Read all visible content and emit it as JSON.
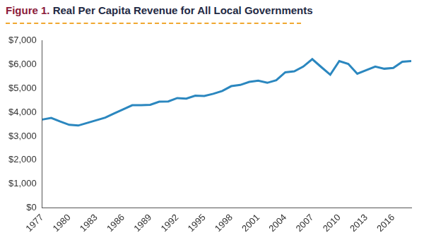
{
  "chart_data": {
    "type": "line",
    "title": "Figure 1. Real Per Capita Revenue for All Local Governments",
    "x": [
      1977,
      1978,
      1979,
      1980,
      1981,
      1982,
      1983,
      1984,
      1985,
      1986,
      1987,
      1988,
      1989,
      1990,
      1991,
      1992,
      1993,
      1994,
      1995,
      1996,
      1997,
      1998,
      1999,
      2000,
      2001,
      2002,
      2003,
      2004,
      2005,
      2006,
      2007,
      2008,
      2009,
      2010,
      2011,
      2012,
      2013,
      2014,
      2015,
      2016,
      2017,
      2018
    ],
    "values": [
      3700,
      3770,
      3620,
      3480,
      3450,
      3560,
      3670,
      3780,
      3960,
      4130,
      4300,
      4300,
      4320,
      4450,
      4460,
      4600,
      4580,
      4700,
      4690,
      4780,
      4900,
      5100,
      5150,
      5280,
      5330,
      5240,
      5350,
      5680,
      5720,
      5920,
      6230,
      5900,
      5580,
      6150,
      6030,
      5620,
      5770,
      5920,
      5830,
      5860,
      6120,
      6150
    ],
    "color": "#2b87bf",
    "xlim": [
      1977,
      2018
    ],
    "xticks": [
      1977,
      1980,
      1983,
      1986,
      1989,
      1992,
      1995,
      1998,
      2001,
      2004,
      2007,
      2010,
      2013,
      2016
    ],
    "ylim": [
      0,
      7000
    ],
    "yticks": [
      {
        "value": 0,
        "label": "$0"
      },
      {
        "value": 1000,
        "label": "$1,000"
      },
      {
        "value": 2000,
        "label": "$2,000"
      },
      {
        "value": 3000,
        "label": "$3,000"
      },
      {
        "value": 4000,
        "label": "$4,000"
      },
      {
        "value": 5000,
        "label": "$5,000"
      },
      {
        "value": 6000,
        "label": "$6,000"
      },
      {
        "value": 7000,
        "label": "$7,000"
      }
    ],
    "grid": false
  }
}
